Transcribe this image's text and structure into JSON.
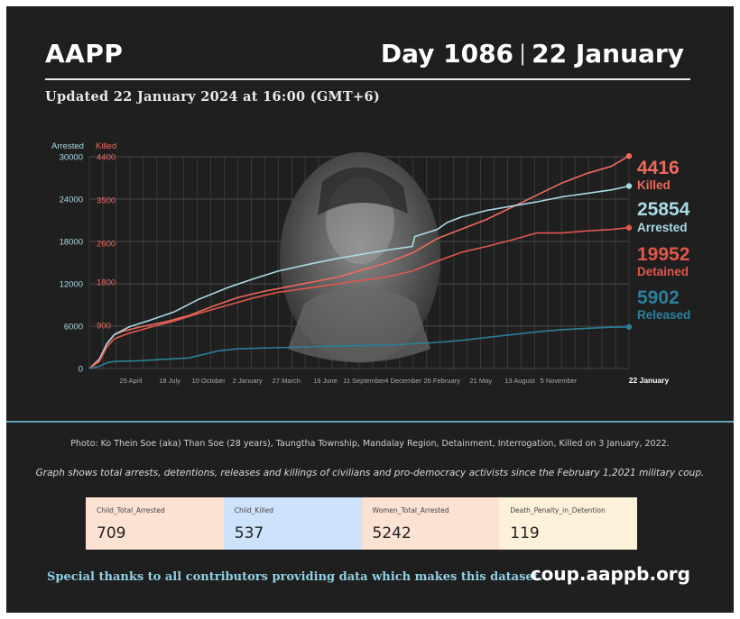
{
  "header": {
    "brand": "AAPP",
    "day": "Day 1086",
    "separator": "|",
    "date": "22 January",
    "updated": "Updated 22 January 2024 at 16:00 (GMT+6)"
  },
  "colors": {
    "background": "#1f1f1f",
    "killed": "#ee6a5e",
    "arrested": "#a9dbe7",
    "detained": "#e0584c",
    "released": "#2a7f9c",
    "accent_rule": "#5fa4b6"
  },
  "chart_data": {
    "type": "line",
    "axes": {
      "left_arrested": {
        "label": "Arrested",
        "ticks": [
          0,
          6000,
          12000,
          18000,
          24000,
          30000
        ],
        "range": [
          0,
          30000
        ]
      },
      "right_killed": {
        "label": "Killed",
        "ticks": [
          0,
          900,
          1800,
          2600,
          3500,
          4400
        ],
        "range": [
          0,
          4400
        ]
      }
    },
    "grid": true,
    "x_tick_labels": [
      "25 April",
      "18 July",
      "10 October",
      "2 January",
      "27 March",
      "19 June",
      "11 September",
      "4 December",
      "26 February",
      "21 May",
      "13 August",
      "5 November",
      "22 January"
    ],
    "x_range_days": [
      0,
      1086
    ],
    "series": [
      {
        "name": "Killed",
        "axis": "killed",
        "latest": 4416,
        "label": "4416",
        "x": [
          0,
          20,
          35,
          50,
          70,
          100,
          150,
          200,
          250,
          300,
          350,
          400,
          450,
          500,
          550,
          600,
          650,
          700,
          750,
          800,
          850,
          900,
          950,
          1000,
          1050,
          1086
        ],
        "y": [
          0,
          200,
          500,
          700,
          780,
          860,
          960,
          1100,
          1300,
          1480,
          1600,
          1700,
          1800,
          1900,
          2050,
          2200,
          2400,
          2700,
          2900,
          3100,
          3350,
          3600,
          3850,
          4050,
          4200,
          4416
        ]
      },
      {
        "name": "Arrested",
        "axis": "arrested",
        "latest": 25854,
        "label": "25854",
        "x": [
          0,
          20,
          35,
          50,
          80,
          120,
          170,
          220,
          280,
          330,
          380,
          450,
          500,
          550,
          600,
          650,
          655,
          700,
          720,
          750,
          800,
          850,
          900,
          950,
          1000,
          1050,
          1086
        ],
        "y": [
          0,
          1200,
          3500,
          4800,
          5900,
          6800,
          8000,
          9800,
          11500,
          12700,
          13800,
          14900,
          15600,
          16200,
          16800,
          17300,
          18700,
          19700,
          20700,
          21500,
          22400,
          23000,
          23600,
          24300,
          24800,
          25300,
          25854
        ]
      },
      {
        "name": "Detained",
        "axis": "arrested",
        "latest": 19952,
        "label": "19952",
        "x": [
          0,
          20,
          35,
          50,
          80,
          120,
          170,
          220,
          280,
          330,
          380,
          450,
          500,
          550,
          600,
          650,
          700,
          750,
          800,
          850,
          900,
          950,
          1000,
          1050,
          1086
        ],
        "y": [
          0,
          1000,
          3000,
          4200,
          5000,
          5800,
          6700,
          7800,
          9000,
          10000,
          10800,
          11500,
          12000,
          12500,
          13000,
          13800,
          15200,
          16500,
          17300,
          18200,
          19200,
          19200,
          19500,
          19700,
          19952
        ]
      },
      {
        "name": "Released",
        "axis": "arrested",
        "latest": 5902,
        "label": "5902",
        "x": [
          0,
          20,
          35,
          50,
          100,
          150,
          200,
          260,
          300,
          400,
          500,
          600,
          650,
          700,
          750,
          800,
          850,
          900,
          950,
          1000,
          1050,
          1086
        ],
        "y": [
          0,
          300,
          800,
          1000,
          1100,
          1300,
          1500,
          2500,
          2800,
          3000,
          3200,
          3300,
          3500,
          3700,
          4000,
          4400,
          4800,
          5200,
          5500,
          5700,
          5850,
          5902
        ]
      }
    ]
  },
  "footer": {
    "photo_credit": "Photo: Ko Thein Soe (aka) Than Soe (28 years), Taungtha Township, Mandalay Region, Detainment, Interrogation, Killed on 3 January, 2022.",
    "graph_note": "Graph shows total arrests, detentions, releases and killings of civilians and pro-democracy activists since the February 1,2021 military coup.",
    "stats": [
      {
        "label": "Child_Total_Arrested",
        "value": "709",
        "color": "#fbe2d3"
      },
      {
        "label": "Child_Killed",
        "value": "537",
        "color": "#cfe2fb"
      },
      {
        "label": "Women_Total_Arrested",
        "value": "5242",
        "color": "#fbe2d3"
      },
      {
        "label": "Death_Penalty_in_Detention",
        "value": "119",
        "color": "#fdf2d9"
      }
    ],
    "thanks": "Special thanks to all contributors providing data which makes this dataset.",
    "site": "coup.aappb.org"
  }
}
